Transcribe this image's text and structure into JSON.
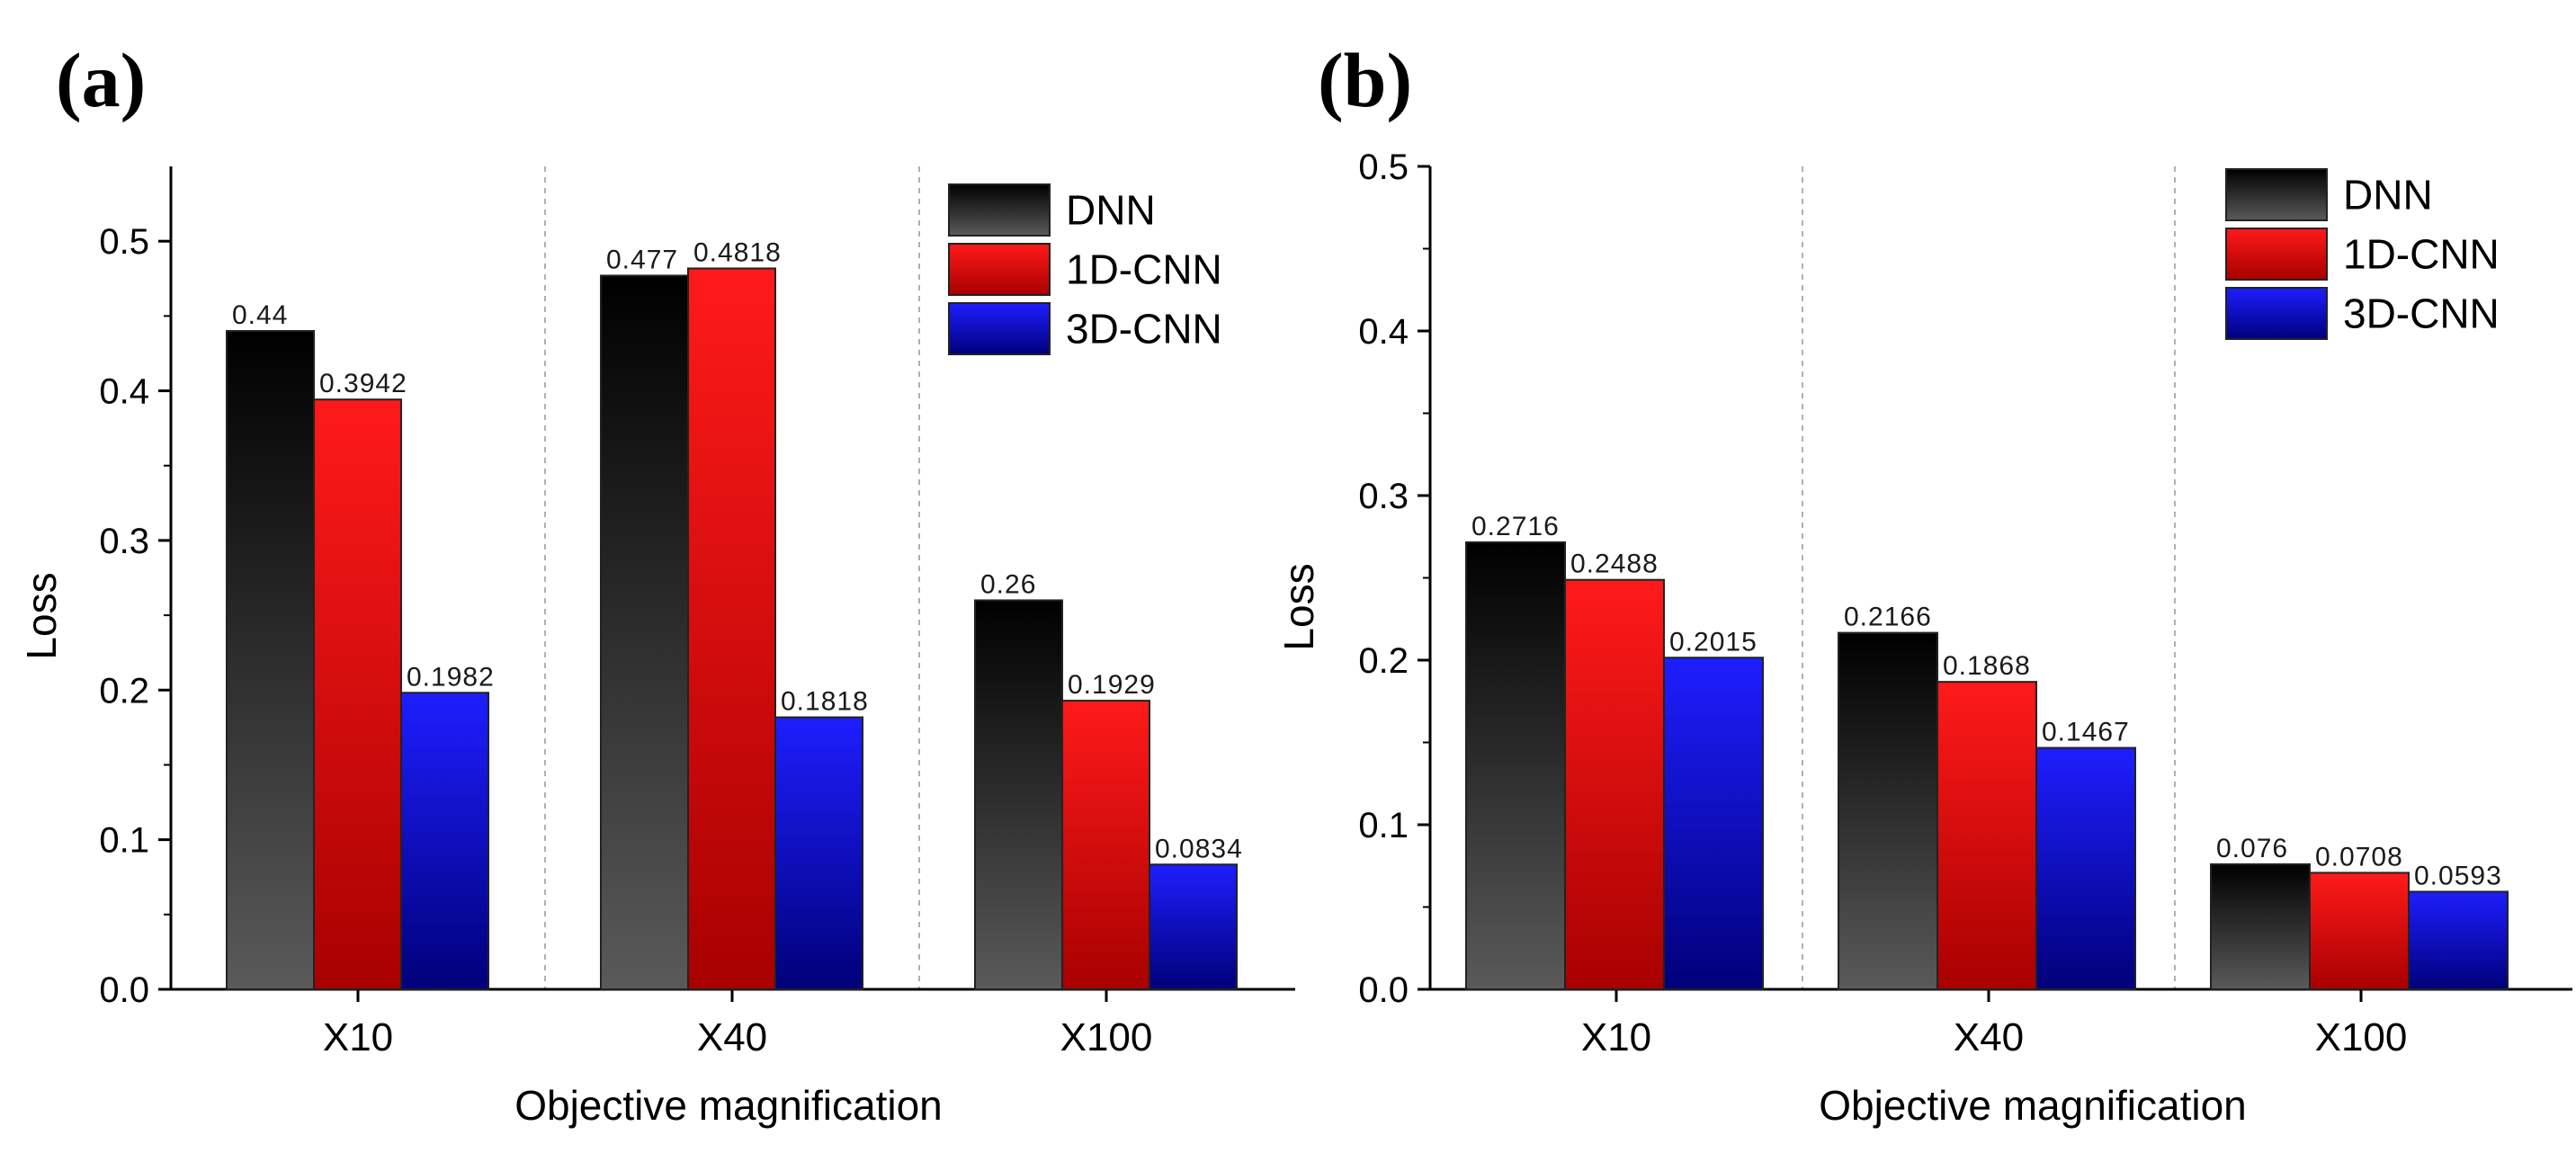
{
  "chart_data": [
    {
      "panel_label": "(a)",
      "type": "bar",
      "categories": [
        "X10",
        "X40",
        "X100"
      ],
      "series": [
        {
          "name": "DNN",
          "values": [
            0.44,
            0.477,
            0.26
          ],
          "labels": [
            "0.44",
            "0.477",
            "0.26"
          ],
          "color": "#000000"
        },
        {
          "name": "1D-CNN",
          "values": [
            0.3942,
            0.4818,
            0.1929
          ],
          "labels": [
            "0.3942",
            "0.4818",
            "0.1929"
          ],
          "color": "#ff0000"
        },
        {
          "name": "3D-CNN",
          "values": [
            0.1982,
            0.1818,
            0.0834
          ],
          "labels": [
            "0.1982",
            "0.1818",
            "0.0834"
          ],
          "color": "#0000ff"
        }
      ],
      "ylim": [
        0,
        0.55
      ],
      "yticks": [
        "0.0",
        "0.1",
        "0.2",
        "0.3",
        "0.4",
        "0.5"
      ],
      "xlabel": "Objective magnification",
      "ylabel": "Loss",
      "legend": "top-right"
    },
    {
      "panel_label": "(b)",
      "type": "bar",
      "categories": [
        "X10",
        "X40",
        "X100"
      ],
      "series": [
        {
          "name": "DNN",
          "values": [
            0.2716,
            0.2166,
            0.076
          ],
          "labels": [
            "0.2716",
            "0.2166",
            "0.076"
          ],
          "color": "#000000"
        },
        {
          "name": "1D-CNN",
          "values": [
            0.2488,
            0.1868,
            0.0708
          ],
          "labels": [
            "0.2488",
            "0.1868",
            "0.0708"
          ],
          "color": "#ff0000"
        },
        {
          "name": "3D-CNN",
          "values": [
            0.2015,
            0.1467,
            0.0593
          ],
          "labels": [
            "0.2015",
            "0.1467",
            "0.0593"
          ],
          "color": "#0000ff"
        }
      ],
      "ylim": [
        0,
        0.5
      ],
      "yticks": [
        "0.0",
        "0.1",
        "0.2",
        "0.3",
        "0.4",
        "0.5"
      ],
      "xlabel": "Objective magnification",
      "ylabel": "Loss",
      "legend": "top-right"
    }
  ]
}
